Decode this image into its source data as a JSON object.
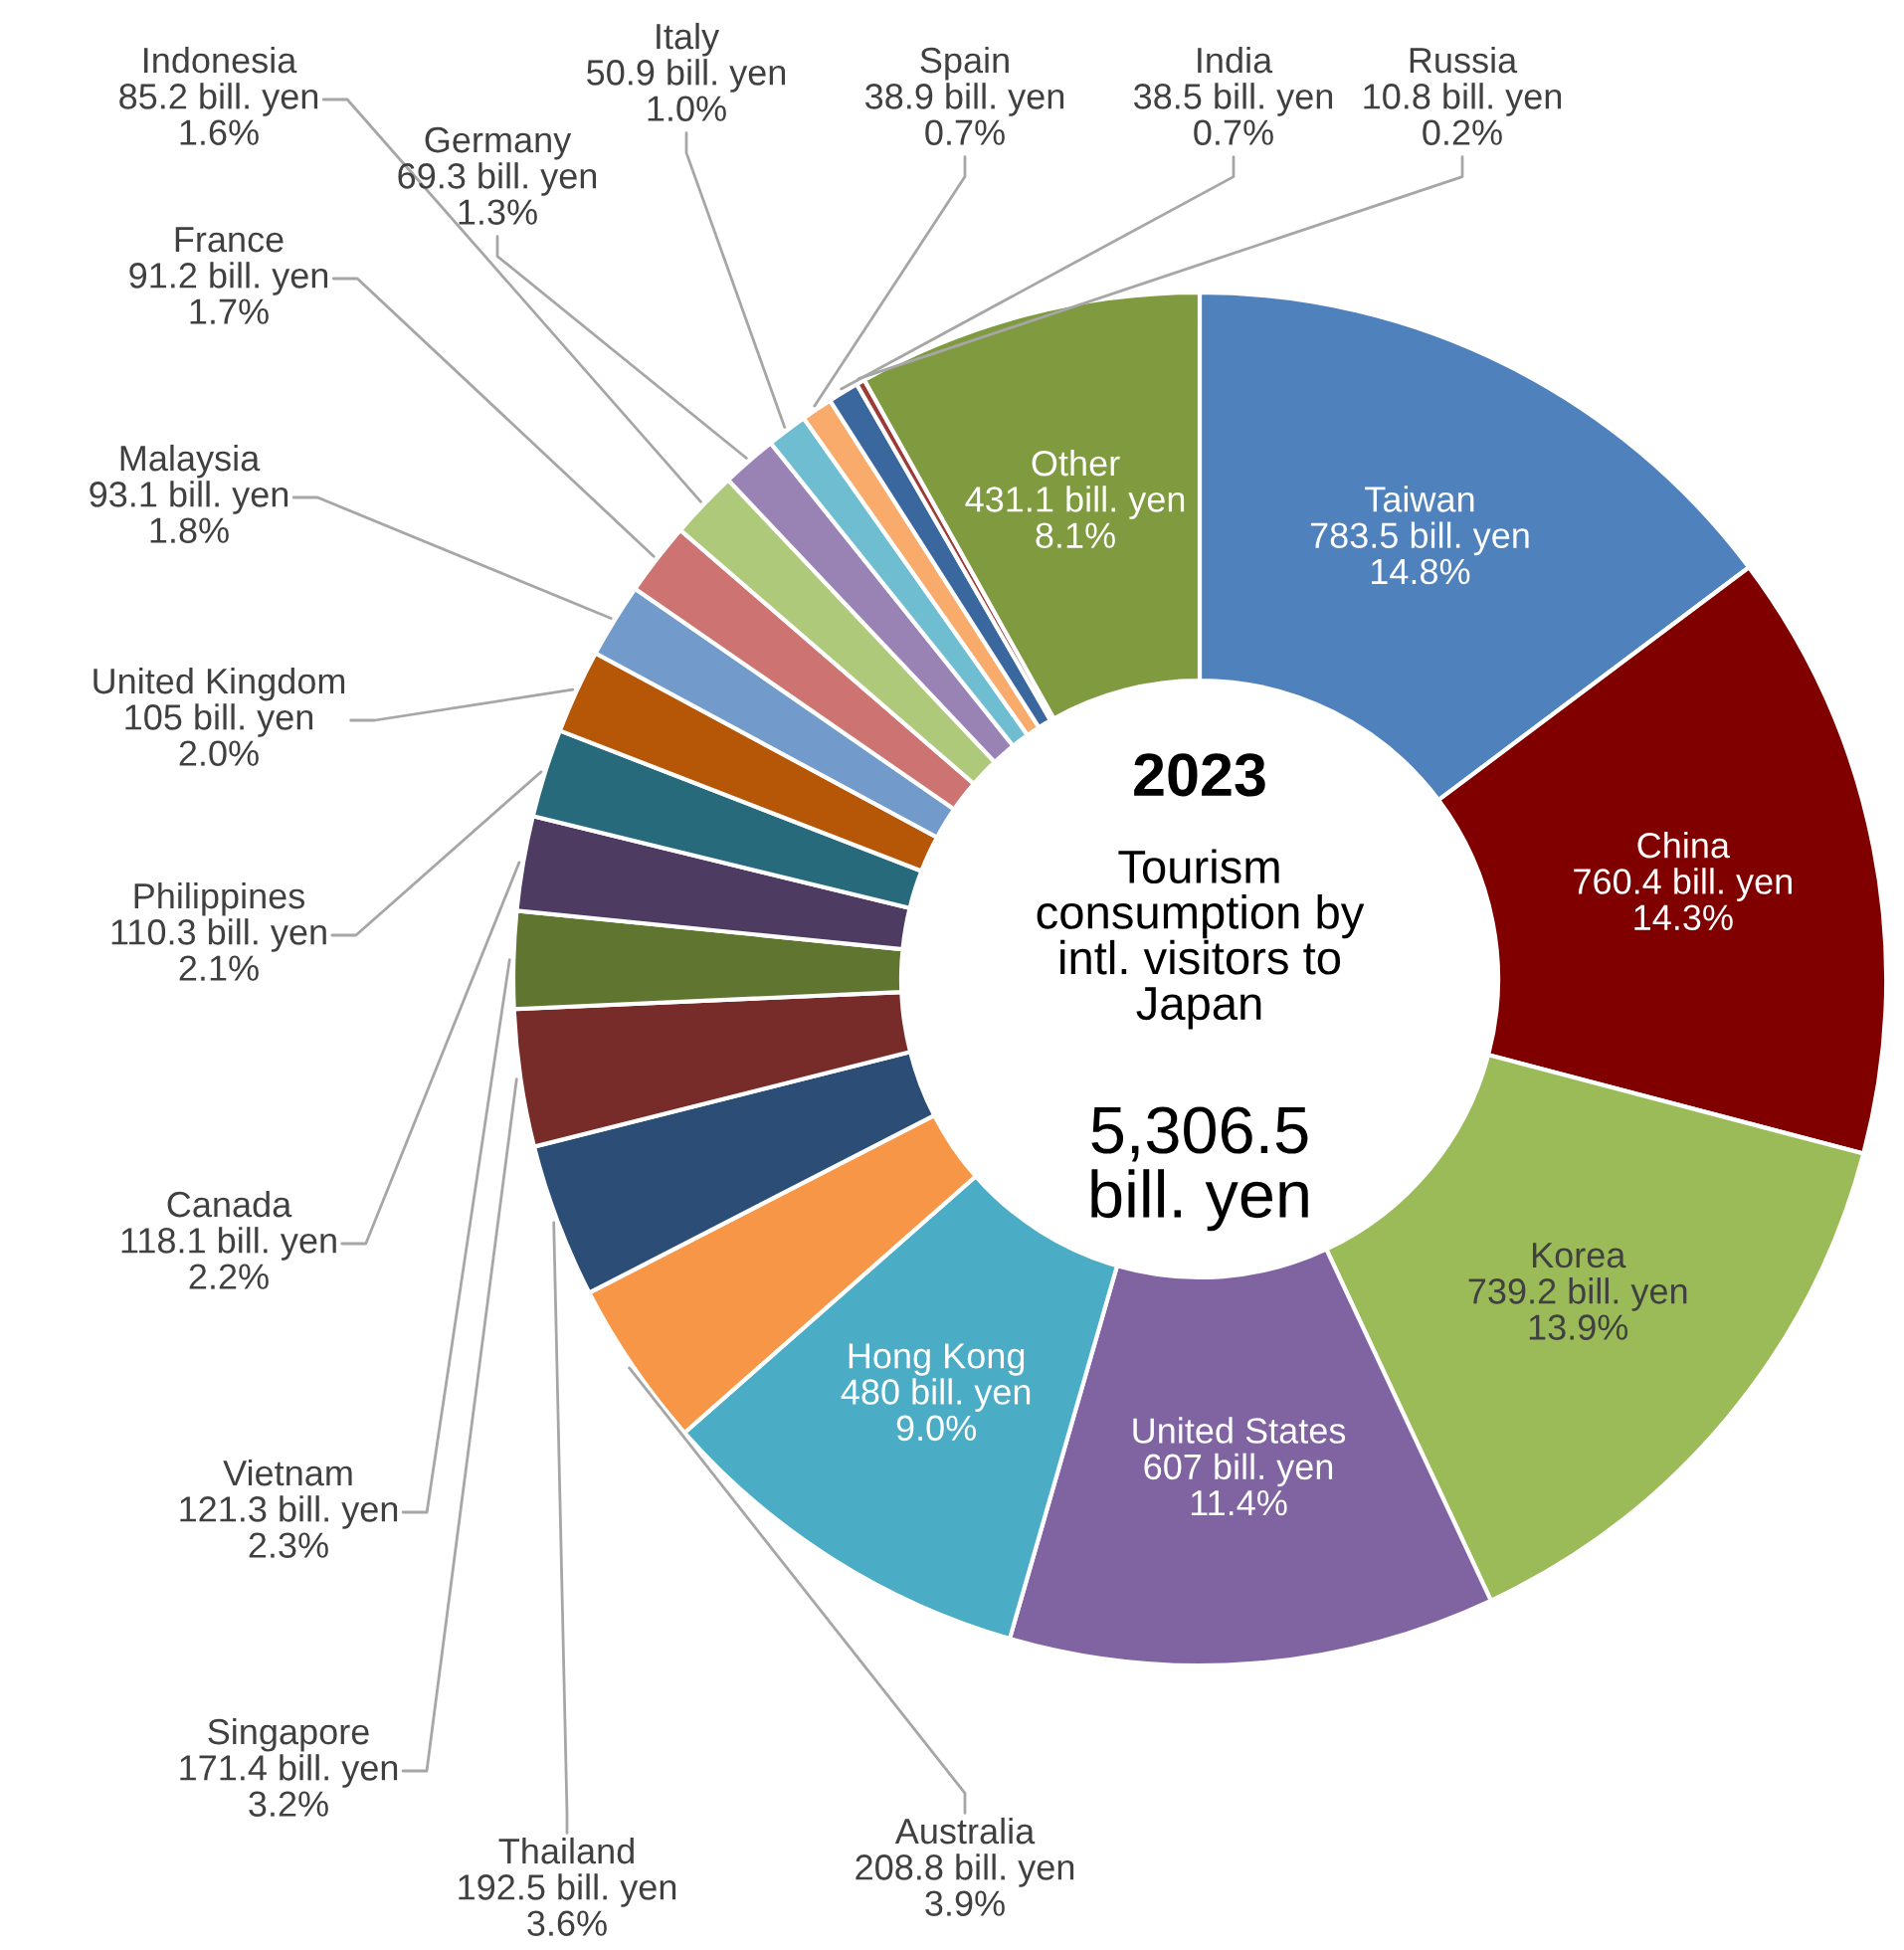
{
  "chart_data": {
    "type": "donut",
    "categories": [
      "Taiwan",
      "China",
      "Korea",
      "United States",
      "Hong Kong",
      "Australia",
      "Thailand",
      "Singapore",
      "Vietnam",
      "Canada",
      "Philippines",
      "United Kingdom",
      "Malaysia",
      "France",
      "Indonesia",
      "Germany",
      "Italy",
      "Spain",
      "India",
      "Russia",
      "Other"
    ],
    "values": [
      783.5,
      760.4,
      739.2,
      607,
      480,
      208.8,
      192.5,
      171.4,
      121.3,
      118.1,
      110.3,
      105,
      93.1,
      91.2,
      85.2,
      69.3,
      50.9,
      38.9,
      38.5,
      10.8,
      431.1
    ],
    "colors": [
      "#4f81bd",
      "#800000",
      "#9bbb59",
      "#8064a2",
      "#4bacc6",
      "#f79646",
      "#2c4d75",
      "#772c2a",
      "#5f7530",
      "#4d3b62",
      "#276a7c",
      "#b65708",
      "#729aca",
      "#cd7371",
      "#afc97a",
      "#9983b5",
      "#6fbdd1",
      "#f9ab6b",
      "#3a679e",
      "#9c3b38",
      "#7f9a3f"
    ],
    "value_labels": [
      "783.5 bill. yen\n14.8%",
      "760.4 bill. yen\n14.3%",
      "739.2 bill. yen\n13.9%",
      "607 bill. yen\n11.4%",
      "480 bill. yen\n9.0%",
      "208.8 bill. yen\n3.9%",
      "192.5 bill. yen\n3.6%",
      "171.4 bill. yen\n3.2%",
      "121.3 bill. yen\n2.3%",
      "118.1 bill. yen\n2.2%",
      "110.3 bill. yen\n2.1%",
      "105 bill. yen\n2.0%",
      "93.1 bill. yen\n1.8%",
      "91.2 bill. yen\n1.7%",
      "85.2 bill. yen\n1.6%",
      "69.3 bill. yen\n1.3%",
      "50.9 bill. yen\n1.0%",
      "38.9 bill. yen\n0.7%",
      "38.5 bill. yen\n0.7%",
      "10.8 bill. yen\n0.2%",
      "431.1 bill. yen\n8.1%"
    ],
    "annotations": [
      "2023",
      "Tourism\nconsumption by\nintl. visitors to\nJapan",
      "5,306.5\nbill. yen"
    ]
  }
}
